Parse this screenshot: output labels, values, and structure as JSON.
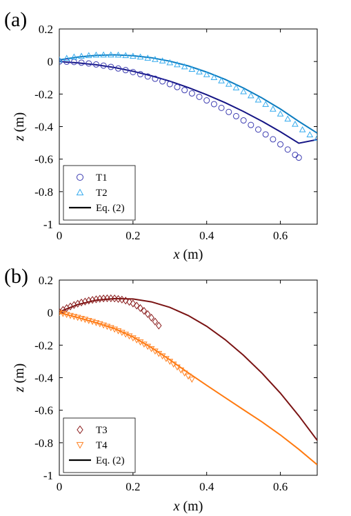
{
  "chart_data": [
    {
      "type": "scatter",
      "panel_label": "(a)",
      "xlabel_var": "x",
      "xlabel_unit": " (m)",
      "ylabel_var": "z",
      "ylabel_unit": " (m)",
      "xlim": [
        0,
        0.7
      ],
      "ylim": [
        -1,
        0.2
      ],
      "xticks": [
        0,
        0.2,
        0.4,
        0.6
      ],
      "xtick_labels": [
        "0",
        "0.2",
        "0.4",
        "0.6"
      ],
      "yticks": [
        0.2,
        0,
        -0.2,
        -0.4,
        -0.6,
        -0.8,
        -1
      ],
      "ytick_labels": [
        "0.2",
        "0",
        "-0.2",
        "-0.4",
        "-0.6",
        "-0.8",
        "-1"
      ],
      "grid": false,
      "legend_position": "bottom-left",
      "series": [
        {
          "name": "T1",
          "marker": "circle",
          "color": "#3a3ab0",
          "x": [
            0.0,
            0.02,
            0.04,
            0.06,
            0.08,
            0.1,
            0.12,
            0.14,
            0.16,
            0.18,
            0.2,
            0.22,
            0.24,
            0.26,
            0.28,
            0.3,
            0.32,
            0.34,
            0.36,
            0.38,
            0.4,
            0.42,
            0.44,
            0.46,
            0.48,
            0.5,
            0.52,
            0.54,
            0.56,
            0.58,
            0.6,
            0.62,
            0.64,
            0.65
          ],
          "y": [
            0.0,
            -0.001,
            -0.003,
            -0.007,
            -0.012,
            -0.018,
            -0.025,
            -0.033,
            -0.043,
            -0.053,
            -0.065,
            -0.078,
            -0.092,
            -0.106,
            -0.122,
            -0.139,
            -0.157,
            -0.176,
            -0.196,
            -0.217,
            -0.239,
            -0.262,
            -0.285,
            -0.31,
            -0.336,
            -0.362,
            -0.39,
            -0.418,
            -0.448,
            -0.478,
            -0.509,
            -0.541,
            -0.574,
            -0.591
          ]
        },
        {
          "name": "T2",
          "marker": "triangle-up",
          "color": "#33aaee",
          "x": [
            0.0,
            0.02,
            0.04,
            0.06,
            0.08,
            0.1,
            0.12,
            0.14,
            0.16,
            0.18,
            0.2,
            0.22,
            0.24,
            0.26,
            0.28,
            0.3,
            0.32,
            0.34,
            0.36,
            0.38,
            0.4,
            0.42,
            0.44,
            0.46,
            0.48,
            0.5,
            0.52,
            0.54,
            0.56,
            0.58,
            0.6,
            0.62,
            0.64,
            0.66,
            0.68,
            0.7
          ],
          "y": [
            0.01,
            0.02,
            0.028,
            0.033,
            0.037,
            0.04,
            0.041,
            0.041,
            0.04,
            0.037,
            0.033,
            0.028,
            0.021,
            0.013,
            0.004,
            -0.007,
            -0.019,
            -0.032,
            -0.047,
            -0.063,
            -0.08,
            -0.098,
            -0.118,
            -0.139,
            -0.161,
            -0.185,
            -0.21,
            -0.236,
            -0.263,
            -0.292,
            -0.322,
            -0.353,
            -0.385,
            -0.419,
            -0.45,
            -0.47
          ]
        },
        {
          "name": "Eq. (2)",
          "marker": "line",
          "color": "#000000",
          "legend_only": true
        },
        {
          "name": "",
          "marker": "line",
          "color": "#151585",
          "x": [
            0.0,
            0.05,
            0.1,
            0.15,
            0.2,
            0.25,
            0.3,
            0.35,
            0.4,
            0.45,
            0.5,
            0.55,
            0.6,
            0.65,
            0.7
          ],
          "y": [
            0.0,
            -0.008,
            -0.02,
            -0.037,
            -0.06,
            -0.088,
            -0.121,
            -0.16,
            -0.204,
            -0.253,
            -0.307,
            -0.367,
            -0.432,
            -0.502,
            -0.48
          ]
        },
        {
          "name": "",
          "marker": "line",
          "color": "#0d7dc0",
          "x": [
            0.0,
            0.05,
            0.1,
            0.15,
            0.2,
            0.25,
            0.3,
            0.35,
            0.4,
            0.45,
            0.5,
            0.55,
            0.6,
            0.65,
            0.7
          ],
          "y": [
            0.01,
            0.027,
            0.038,
            0.041,
            0.036,
            0.023,
            0.002,
            -0.027,
            -0.065,
            -0.11,
            -0.163,
            -0.224,
            -0.292,
            -0.368,
            -0.44
          ]
        }
      ]
    },
    {
      "type": "scatter",
      "panel_label": "(b)",
      "xlabel_var": "x",
      "xlabel_unit": " (m)",
      "ylabel_var": "z",
      "ylabel_unit": " (m)",
      "xlim": [
        0,
        0.7
      ],
      "ylim": [
        -1,
        0.2
      ],
      "xticks": [
        0,
        0.2,
        0.4,
        0.6
      ],
      "xtick_labels": [
        "0",
        "0.2",
        "0.4",
        "0.6"
      ],
      "yticks": [
        0.2,
        0,
        -0.2,
        -0.4,
        -0.6,
        -0.8,
        -1
      ],
      "ytick_labels": [
        "0.2",
        "0",
        "-0.2",
        "-0.4",
        "-0.6",
        "-0.8",
        "-1"
      ],
      "grid": false,
      "legend_position": "bottom-left",
      "series": [
        {
          "name": "T3",
          "marker": "diamond",
          "color": "#8a1c1c",
          "x": [
            0.0,
            0.01,
            0.02,
            0.03,
            0.04,
            0.05,
            0.06,
            0.07,
            0.08,
            0.09,
            0.1,
            0.11,
            0.12,
            0.13,
            0.14,
            0.15,
            0.16,
            0.17,
            0.18,
            0.19,
            0.2,
            0.21,
            0.22,
            0.23,
            0.24,
            0.25,
            0.26,
            0.27
          ],
          "y": [
            0.005,
            0.017,
            0.028,
            0.038,
            0.047,
            0.055,
            0.062,
            0.068,
            0.074,
            0.078,
            0.082,
            0.085,
            0.087,
            0.088,
            0.088,
            0.087,
            0.084,
            0.08,
            0.074,
            0.066,
            0.056,
            0.043,
            0.028,
            0.011,
            -0.009,
            -0.031,
            -0.055,
            -0.08
          ]
        },
        {
          "name": "T4",
          "marker": "triangle-down",
          "color": "#ff8020",
          "x": [
            0.0,
            0.01,
            0.02,
            0.03,
            0.04,
            0.05,
            0.06,
            0.07,
            0.08,
            0.09,
            0.1,
            0.11,
            0.12,
            0.13,
            0.14,
            0.15,
            0.16,
            0.17,
            0.18,
            0.19,
            0.2,
            0.21,
            0.22,
            0.23,
            0.24,
            0.25,
            0.26,
            0.27,
            0.28,
            0.29,
            0.3,
            0.31,
            0.32,
            0.33,
            0.34,
            0.35,
            0.36
          ],
          "y": [
            0.0,
            -0.006,
            -0.012,
            -0.018,
            -0.024,
            -0.03,
            -0.036,
            -0.042,
            -0.049,
            -0.055,
            -0.062,
            -0.069,
            -0.077,
            -0.085,
            -0.093,
            -0.102,
            -0.112,
            -0.122,
            -0.133,
            -0.144,
            -0.156,
            -0.168,
            -0.181,
            -0.194,
            -0.208,
            -0.222,
            -0.237,
            -0.252,
            -0.267,
            -0.283,
            -0.3,
            -0.317,
            -0.335,
            -0.353,
            -0.372,
            -0.391,
            -0.41
          ]
        },
        {
          "name": "Eq. (2)",
          "marker": "line",
          "color": "#000000",
          "legend_only": true
        },
        {
          "name": "",
          "marker": "line",
          "color": "#7a1313",
          "x": [
            0.0,
            0.05,
            0.1,
            0.15,
            0.2,
            0.25,
            0.3,
            0.35,
            0.4,
            0.45,
            0.5,
            0.55,
            0.6,
            0.65,
            0.7
          ],
          "y": [
            0.005,
            0.05,
            0.076,
            0.086,
            0.084,
            0.066,
            0.032,
            -0.018,
            -0.084,
            -0.166,
            -0.262,
            -0.372,
            -0.495,
            -0.634,
            -0.785
          ]
        },
        {
          "name": "",
          "marker": "line",
          "color": "#ff7a10",
          "x": [
            0.0,
            0.05,
            0.1,
            0.15,
            0.2,
            0.25,
            0.3,
            0.35,
            0.4,
            0.45,
            0.5,
            0.55,
            0.6,
            0.65,
            0.7
          ],
          "y": [
            0.0,
            -0.03,
            -0.062,
            -0.098,
            -0.15,
            -0.215,
            -0.29,
            -0.37,
            -0.447,
            -0.522,
            -0.597,
            -0.672,
            -0.752,
            -0.84,
            -0.935
          ]
        }
      ]
    }
  ]
}
